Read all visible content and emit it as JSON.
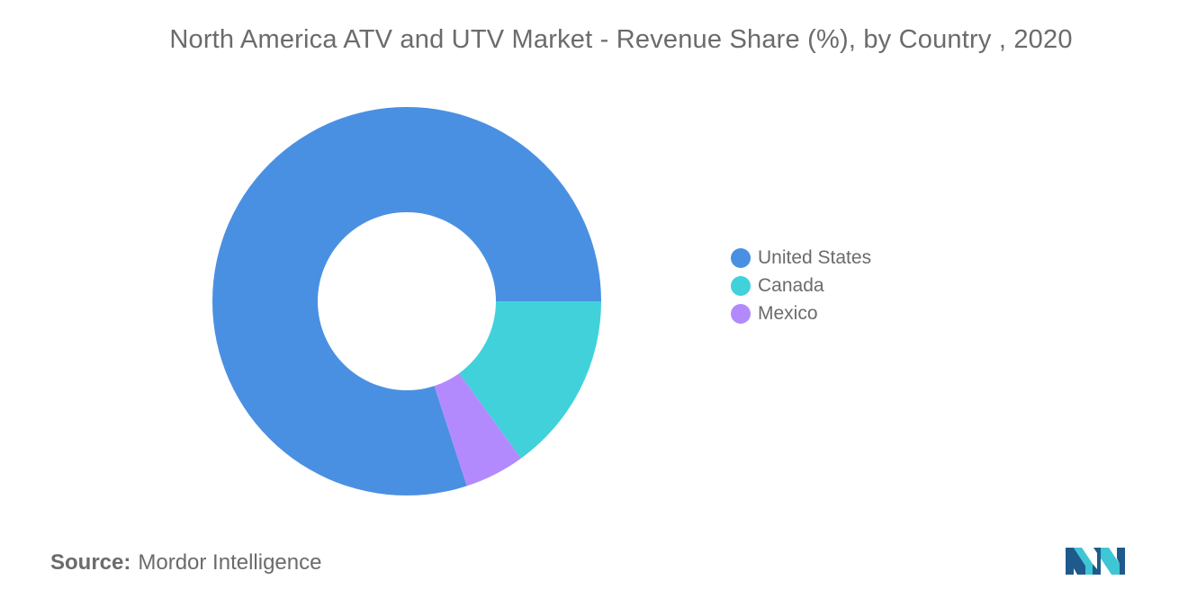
{
  "chart_data": {
    "type": "pie",
    "title": "North America ATV and UTV Market - Revenue Share (%), by Country , 2020",
    "categories": [
      "United States",
      "Canada",
      "Mexico"
    ],
    "values": [
      80,
      15,
      5
    ],
    "colors": [
      "#4a90e2",
      "#40d1db",
      "#b38afd"
    ],
    "donut": true,
    "legend_placement": "right"
  },
  "source": {
    "label": "Source:",
    "text": "Mordor Intelligence"
  },
  "logo": {
    "icon": "mordor-intelligence-logo",
    "colors": [
      "#1f5a8c",
      "#3ec6d4"
    ]
  }
}
